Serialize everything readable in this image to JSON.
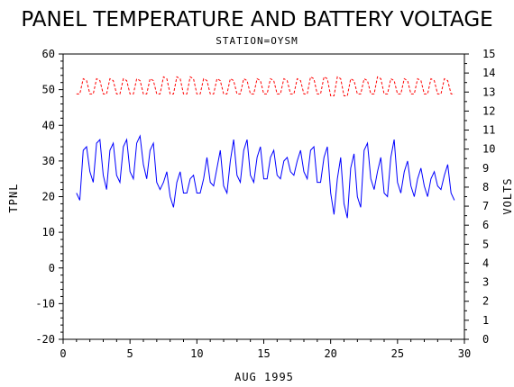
{
  "chart_data": {
    "type": "line",
    "title": "PANEL TEMPERATURE AND BATTERY VOLTAGE",
    "subtitle": "STATION=OYSM",
    "xlabel": "AUG 1995",
    "ylabel_left": "TPNL",
    "ylabel_right": "VOLTS",
    "xlim": [
      0,
      30
    ],
    "ylim_left": [
      -20,
      60
    ],
    "ylim_right": [
      0,
      15
    ],
    "x_ticks": [
      0,
      5,
      10,
      15,
      20,
      25,
      30
    ],
    "y_left_ticks": [
      -20,
      -10,
      0,
      10,
      20,
      30,
      40,
      50,
      60
    ],
    "y_right_ticks": [
      0,
      1,
      2,
      3,
      4,
      5,
      6,
      7,
      8,
      9,
      10,
      11,
      12,
      13,
      14,
      15
    ],
    "grid": false,
    "series": [
      {
        "name": "TPNL",
        "axis": "left",
        "color": "#0000ff",
        "style": "solid",
        "x": [
          1.0,
          1.25,
          1.5,
          1.75,
          2.0,
          2.25,
          2.5,
          2.75,
          3.0,
          3.25,
          3.5,
          3.75,
          4.0,
          4.25,
          4.5,
          4.75,
          5.0,
          5.25,
          5.5,
          5.75,
          6.0,
          6.25,
          6.5,
          6.75,
          7.0,
          7.25,
          7.5,
          7.75,
          8.0,
          8.25,
          8.5,
          8.75,
          9.0,
          9.25,
          9.5,
          9.75,
          10.0,
          10.25,
          10.5,
          10.75,
          11.0,
          11.25,
          11.5,
          11.75,
          12.0,
          12.25,
          12.5,
          12.75,
          13.0,
          13.25,
          13.5,
          13.75,
          14.0,
          14.25,
          14.5,
          14.75,
          15.0,
          15.25,
          15.5,
          15.75,
          16.0,
          16.25,
          16.5,
          16.75,
          17.0,
          17.25,
          17.5,
          17.75,
          18.0,
          18.25,
          18.5,
          18.75,
          19.0,
          19.25,
          19.5,
          19.75,
          20.0,
          20.25,
          20.5,
          20.75,
          21.0,
          21.25,
          21.5,
          21.75,
          22.0,
          22.25,
          22.5,
          22.75,
          23.0,
          23.25,
          23.5,
          23.75,
          24.0,
          24.25,
          24.5,
          24.75,
          25.0,
          25.25,
          25.5,
          25.75,
          26.0,
          26.25,
          26.5,
          26.75,
          27.0,
          27.25,
          27.5,
          27.75,
          28.0,
          28.25,
          28.5,
          28.75,
          29.0,
          29.25
        ],
        "values": [
          21,
          19,
          33,
          34,
          27,
          24,
          35,
          36,
          26,
          22,
          33,
          35,
          26,
          24,
          34,
          36,
          27,
          25,
          35,
          37,
          29,
          25,
          33,
          35,
          24,
          22,
          24,
          27,
          20,
          17,
          24,
          27,
          21,
          21,
          25,
          26,
          21,
          21,
          25,
          31,
          24,
          23,
          28,
          33,
          23,
          21,
          30,
          36,
          26,
          24,
          33,
          36,
          26,
          24,
          31,
          34,
          25,
          25,
          31,
          33,
          26,
          25,
          30,
          31,
          27,
          26,
          30,
          33,
          27,
          25,
          33,
          34,
          24,
          24,
          31,
          34,
          21,
          15,
          25,
          31,
          18,
          14,
          28,
          32,
          20,
          17,
          33,
          35,
          25,
          22,
          27,
          31,
          21,
          20,
          31,
          36,
          24,
          21,
          27,
          30,
          23,
          20,
          25,
          28,
          23,
          20,
          25,
          27,
          23,
          22,
          26,
          29,
          21,
          19
        ]
      },
      {
        "name": "VOLTS",
        "axis": "right",
        "color": "#ff0000",
        "style": "dashed",
        "x": [
          1.0,
          1.25,
          1.5,
          1.75,
          2.0,
          2.25,
          2.5,
          2.75,
          3.0,
          3.25,
          3.5,
          3.75,
          4.0,
          4.25,
          4.5,
          4.75,
          5.0,
          5.25,
          5.5,
          5.75,
          6.0,
          6.25,
          6.5,
          6.75,
          7.0,
          7.25,
          7.5,
          7.75,
          8.0,
          8.25,
          8.5,
          8.75,
          9.0,
          9.25,
          9.5,
          9.75,
          10.0,
          10.25,
          10.5,
          10.75,
          11.0,
          11.25,
          11.5,
          11.75,
          12.0,
          12.25,
          12.5,
          12.75,
          13.0,
          13.25,
          13.5,
          13.75,
          14.0,
          14.25,
          14.5,
          14.75,
          15.0,
          15.25,
          15.5,
          15.75,
          16.0,
          16.25,
          16.5,
          16.75,
          17.0,
          17.25,
          17.5,
          17.75,
          18.0,
          18.25,
          18.5,
          18.75,
          19.0,
          19.25,
          19.5,
          19.75,
          20.0,
          20.25,
          20.5,
          20.75,
          21.0,
          21.25,
          21.5,
          21.75,
          22.0,
          22.25,
          22.5,
          22.75,
          23.0,
          23.25,
          23.5,
          23.75,
          24.0,
          24.25,
          24.5,
          24.75,
          25.0,
          25.25,
          25.5,
          25.75,
          26.0,
          26.25,
          26.5,
          26.75,
          27.0,
          27.25,
          27.5,
          27.75,
          28.0,
          28.25,
          28.5,
          28.75,
          29.0,
          29.25
        ],
        "values": [
          12.9,
          12.9,
          13.7,
          13.6,
          12.9,
          12.9,
          13.7,
          13.6,
          12.9,
          12.9,
          13.7,
          13.6,
          12.9,
          12.9,
          13.7,
          13.6,
          12.9,
          12.9,
          13.7,
          13.6,
          12.9,
          12.9,
          13.7,
          13.6,
          12.9,
          12.9,
          13.8,
          13.7,
          12.9,
          12.9,
          13.8,
          13.7,
          12.9,
          12.9,
          13.8,
          13.7,
          12.9,
          12.9,
          13.7,
          13.6,
          12.9,
          12.9,
          13.7,
          13.6,
          12.9,
          12.9,
          13.7,
          13.6,
          12.9,
          12.9,
          13.7,
          13.6,
          12.9,
          12.9,
          13.7,
          13.6,
          12.9,
          12.9,
          13.7,
          13.6,
          12.9,
          12.9,
          13.7,
          13.6,
          12.9,
          12.9,
          13.7,
          13.6,
          12.9,
          12.9,
          13.8,
          13.7,
          12.9,
          12.9,
          13.8,
          13.7,
          12.8,
          12.8,
          13.8,
          13.7,
          12.8,
          12.8,
          13.7,
          13.6,
          12.9,
          12.9,
          13.7,
          13.6,
          12.9,
          12.9,
          13.8,
          13.7,
          12.9,
          12.9,
          13.7,
          13.6,
          12.9,
          12.9,
          13.7,
          13.6,
          12.9,
          12.9,
          13.7,
          13.6,
          12.9,
          12.9,
          13.7,
          13.6,
          12.9,
          12.9,
          13.7,
          13.6,
          12.9,
          12.9
        ]
      }
    ]
  }
}
